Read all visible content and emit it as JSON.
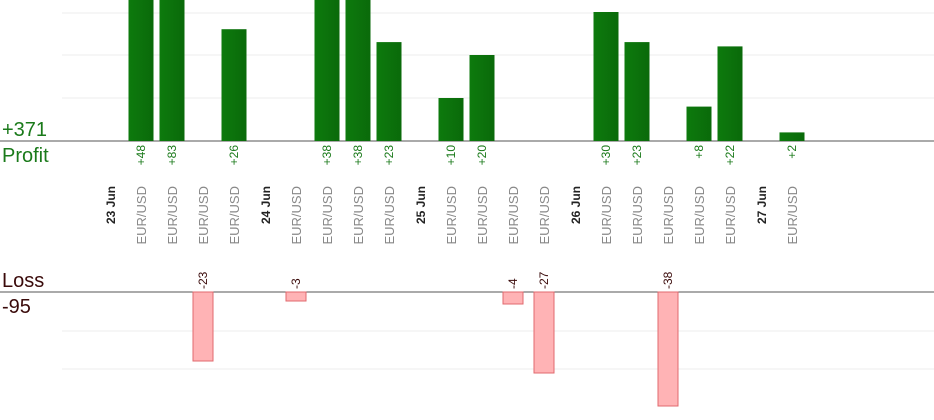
{
  "profit_label": "Profit",
  "profit_total": "+371",
  "loss_label": "Loss",
  "loss_total": "-95",
  "colors": {
    "profit_bar": "#0a6a0a",
    "profit_bar_light": "#0d7a0d",
    "profit_text": "#1a7a1a",
    "loss_bar": "#ffb3b5",
    "loss_bar_edge": "#e06a6e",
    "loss_text": "#3a0a0a",
    "date_text": "#222222",
    "pair_text": "#888888",
    "grid": "#ececec",
    "axis": "#555555"
  },
  "chart_data": {
    "type": "bar",
    "title": "",
    "xlabel": "",
    "ylabel": "",
    "grid": true,
    "profit_ylim": [
      0,
      30
    ],
    "loss_ylim": [
      -40,
      0
    ],
    "columns": [
      {
        "kind": "date",
        "label": "23 Jun"
      },
      {
        "kind": "trade",
        "label": "EUR/USD",
        "profit": 48,
        "profit_label": "+48"
      },
      {
        "kind": "trade",
        "label": "EUR/USD",
        "profit": 83,
        "profit_label": "+83"
      },
      {
        "kind": "trade",
        "label": "EUR/USD",
        "loss": -23,
        "loss_label": "-23"
      },
      {
        "kind": "trade",
        "label": "EUR/USD",
        "profit": 26,
        "profit_label": "+26"
      },
      {
        "kind": "date",
        "label": "24 Jun"
      },
      {
        "kind": "trade",
        "label": "EUR/USD",
        "loss": -3,
        "loss_label": "-3"
      },
      {
        "kind": "trade",
        "label": "EUR/USD",
        "profit": 38,
        "profit_label": "+38"
      },
      {
        "kind": "trade",
        "label": "EUR/USD",
        "profit": 38,
        "profit_label": "+38"
      },
      {
        "kind": "trade",
        "label": "EUR/USD",
        "profit": 23,
        "profit_label": "+23"
      },
      {
        "kind": "date",
        "label": "25 Jun"
      },
      {
        "kind": "trade",
        "label": "EUR/USD",
        "profit": 10,
        "profit_label": "+10"
      },
      {
        "kind": "trade",
        "label": "EUR/USD",
        "profit": 20,
        "profit_label": "+20"
      },
      {
        "kind": "trade",
        "label": "EUR/USD",
        "loss": -4,
        "loss_label": "-4"
      },
      {
        "kind": "trade",
        "label": "EUR/USD",
        "loss": -27,
        "loss_label": "-27"
      },
      {
        "kind": "date",
        "label": "26 Jun"
      },
      {
        "kind": "trade",
        "label": "EUR/USD",
        "profit": 30,
        "profit_label": "+30"
      },
      {
        "kind": "trade",
        "label": "EUR/USD",
        "profit": 23,
        "profit_label": "+23"
      },
      {
        "kind": "trade",
        "label": "EUR/USD",
        "loss": -38,
        "loss_label": "-38"
      },
      {
        "kind": "trade",
        "label": "EUR/USD",
        "profit": 8,
        "profit_label": "+8"
      },
      {
        "kind": "trade",
        "label": "EUR/USD",
        "profit": 22,
        "profit_label": "+22"
      },
      {
        "kind": "date",
        "label": "27 Jun"
      },
      {
        "kind": "trade",
        "label": "EUR/USD",
        "profit": 2,
        "profit_label": "+2"
      }
    ]
  }
}
